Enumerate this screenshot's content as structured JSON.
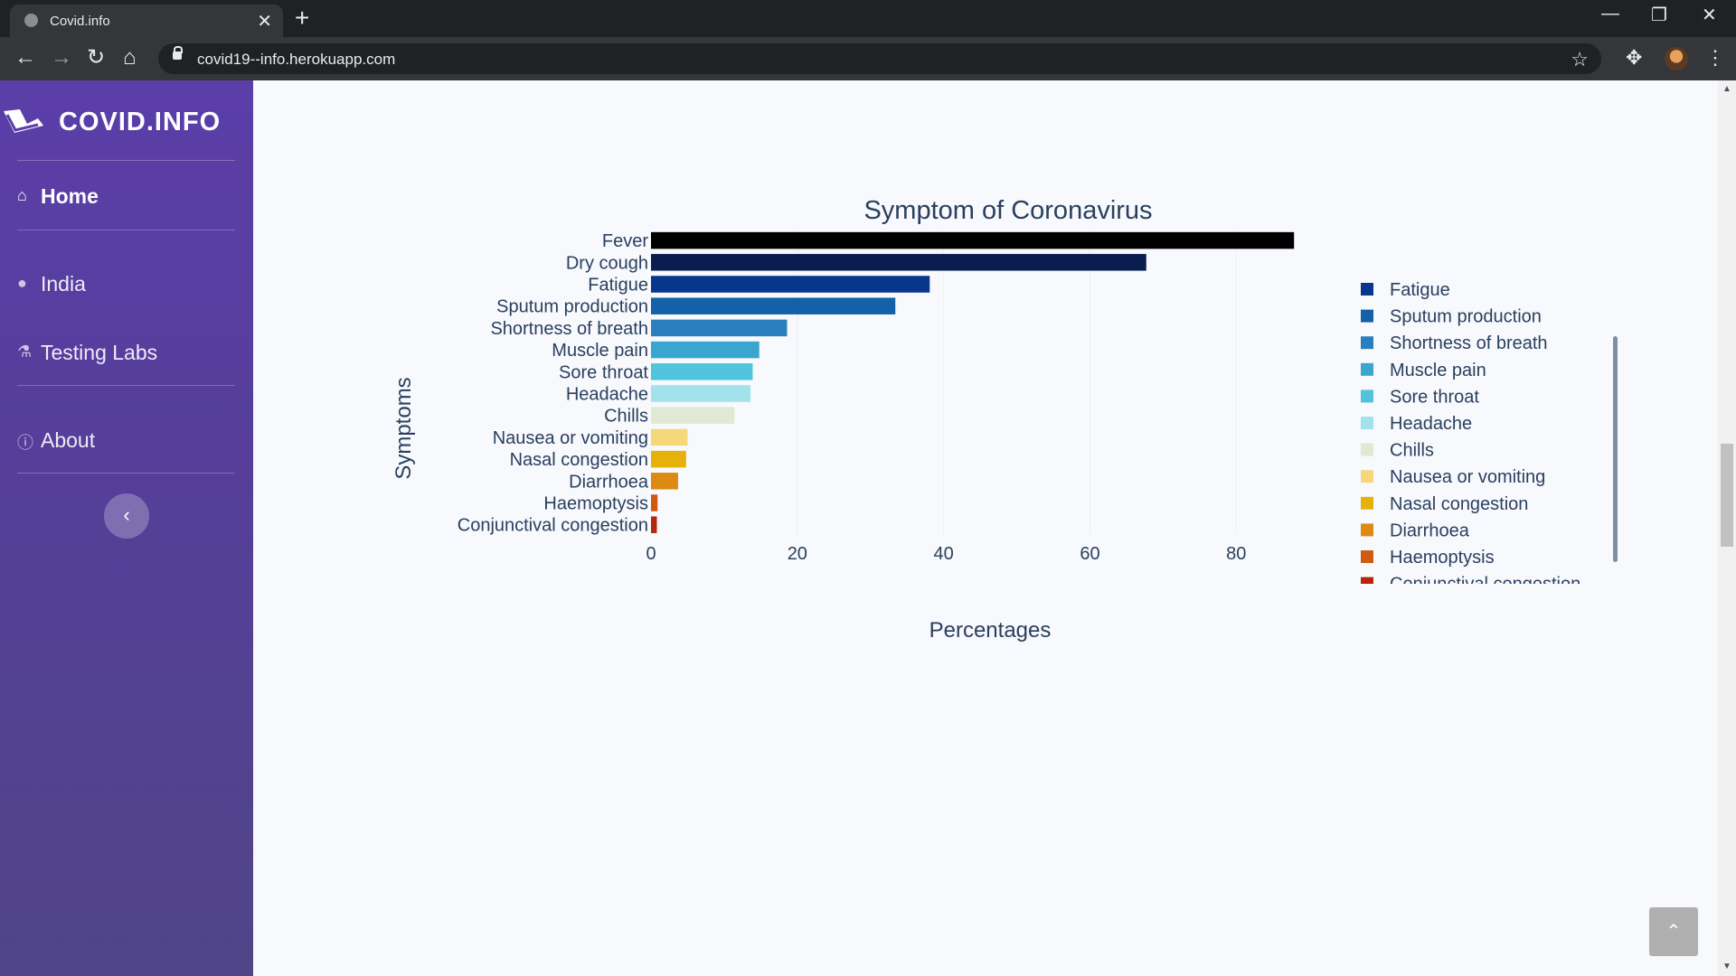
{
  "browser": {
    "tab_title": "Covid.info",
    "url": "covid19--info.herokuapp.com",
    "new_tab_symbol": "+",
    "close_symbol": "✕"
  },
  "sidebar": {
    "brand": "COVID.INFO",
    "items": [
      {
        "label": "Home",
        "icon": "home-icon",
        "active": true
      },
      {
        "label": "India",
        "icon": "map-marker-icon",
        "active": false
      },
      {
        "label": "Testing Labs",
        "icon": "flask-icon",
        "active": false
      },
      {
        "label": "About",
        "icon": "info-icon",
        "active": false
      }
    ],
    "collapse_symbol": "‹",
    "colors": {
      "top": "#5b3ea9",
      "bottom": "#504588"
    }
  },
  "scroll_top_symbol": "⌃",
  "chart_data": {
    "type": "bar",
    "orientation": "horizontal",
    "title": "Symptom of Coronavirus",
    "xlabel": "Percentages",
    "ylabel": "Symptoms",
    "xlim": [
      0,
      88
    ],
    "xticks": [
      0,
      20,
      40,
      60,
      80
    ],
    "grid": true,
    "legend_position": "right",
    "categories": [
      "Fever",
      "Dry cough",
      "Fatigue",
      "Sputum production",
      "Shortness of breath",
      "Muscle pain",
      "Sore throat",
      "Headache",
      "Chills",
      "Nausea or vomiting",
      "Nasal congestion",
      "Diarrhoea",
      "Haemoptysis",
      "Conjunctival congestion"
    ],
    "values": [
      87.9,
      67.7,
      38.1,
      33.4,
      18.6,
      14.8,
      13.9,
      13.6,
      11.4,
      5.0,
      4.8,
      3.7,
      0.9,
      0.8
    ],
    "colors": [
      "#000000",
      "#0a1d4f",
      "#08368c",
      "#1461aa",
      "#2c7fbf",
      "#3aa6d0",
      "#52c3dc",
      "#a2e2ec",
      "#e1e9d4",
      "#f6d77c",
      "#e7b10c",
      "#dc8a14",
      "#cf5a12",
      "#b5260a"
    ],
    "legend": [
      "Fatigue",
      "Sputum production",
      "Shortness of breath",
      "Muscle pain",
      "Sore throat",
      "Headache",
      "Chills",
      "Nausea or vomiting",
      "Nasal congestion",
      "Diarrhoea",
      "Haemoptysis",
      "Conjunctival congestion"
    ]
  }
}
